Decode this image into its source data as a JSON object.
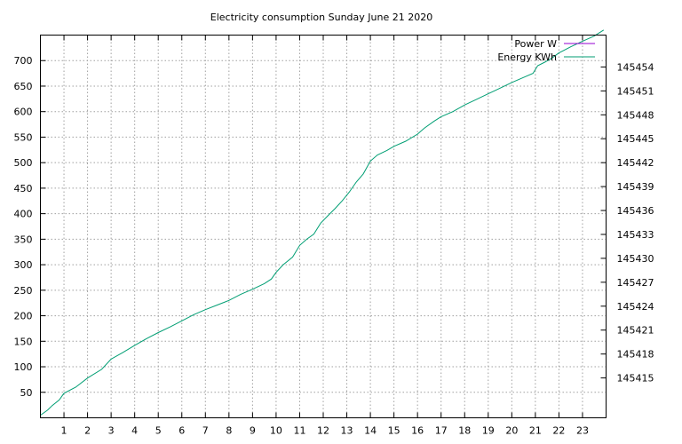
{
  "chart_data": {
    "type": "line",
    "title": "Electricity consumption Sunday June 21 2020",
    "xlabel": "",
    "ylabel": "",
    "y2label": "",
    "xlim": [
      0,
      24
    ],
    "ylim": [
      0,
      750
    ],
    "y2lim": [
      145410,
      145458
    ],
    "grid": true,
    "legend_position": "top-right",
    "x_ticks": [
      1,
      2,
      3,
      4,
      5,
      6,
      7,
      8,
      9,
      10,
      11,
      12,
      13,
      14,
      15,
      16,
      17,
      18,
      19,
      20,
      21,
      22,
      23
    ],
    "y_ticks": [
      50,
      100,
      150,
      200,
      250,
      300,
      350,
      400,
      450,
      500,
      550,
      600,
      650,
      700
    ],
    "y2_ticks": [
      145415,
      145418,
      145421,
      145424,
      145427,
      145430,
      145433,
      145436,
      145439,
      145442,
      145445,
      145448,
      145451,
      145454
    ],
    "series": [
      {
        "name": "Power W",
        "color": "#9400d3",
        "axis": "y2",
        "x": [],
        "values": []
      },
      {
        "name": "Energy KWh",
        "color": "#009e73",
        "axis": "y",
        "x": [
          0,
          0.3,
          0.5,
          0.8,
          1,
          1.5,
          2,
          2.6,
          3,
          3.5,
          4,
          4.5,
          5,
          5.5,
          6,
          6.5,
          7,
          7.5,
          8,
          8.5,
          9,
          9.5,
          9.8,
          10,
          10.3,
          10.7,
          11,
          11.3,
          11.6,
          11.9,
          12.2,
          12.5,
          12.8,
          13.1,
          13.4,
          13.7,
          14,
          14.3,
          14.7,
          15,
          15.5,
          16,
          16.3,
          16.7,
          17,
          17.5,
          18,
          18.5,
          19,
          19.5,
          20,
          20.5,
          20.9,
          21.1,
          21.4,
          21.7,
          22,
          22.5,
          23,
          23.5,
          23.9
        ],
        "values": [
          5,
          15,
          24,
          35,
          48,
          60,
          78,
          95,
          115,
          128,
          142,
          155,
          167,
          178,
          190,
          202,
          212,
          221,
          230,
          242,
          252,
          263,
          272,
          285,
          300,
          315,
          338,
          350,
          360,
          382,
          396,
          410,
          425,
          442,
          462,
          478,
          503,
          515,
          524,
          532,
          542,
          556,
          568,
          581,
          590,
          600,
          613,
          624,
          635,
          646,
          657,
          667,
          675,
          690,
          697,
          705,
          715,
          727,
          738,
          748,
          760
        ]
      }
    ]
  }
}
